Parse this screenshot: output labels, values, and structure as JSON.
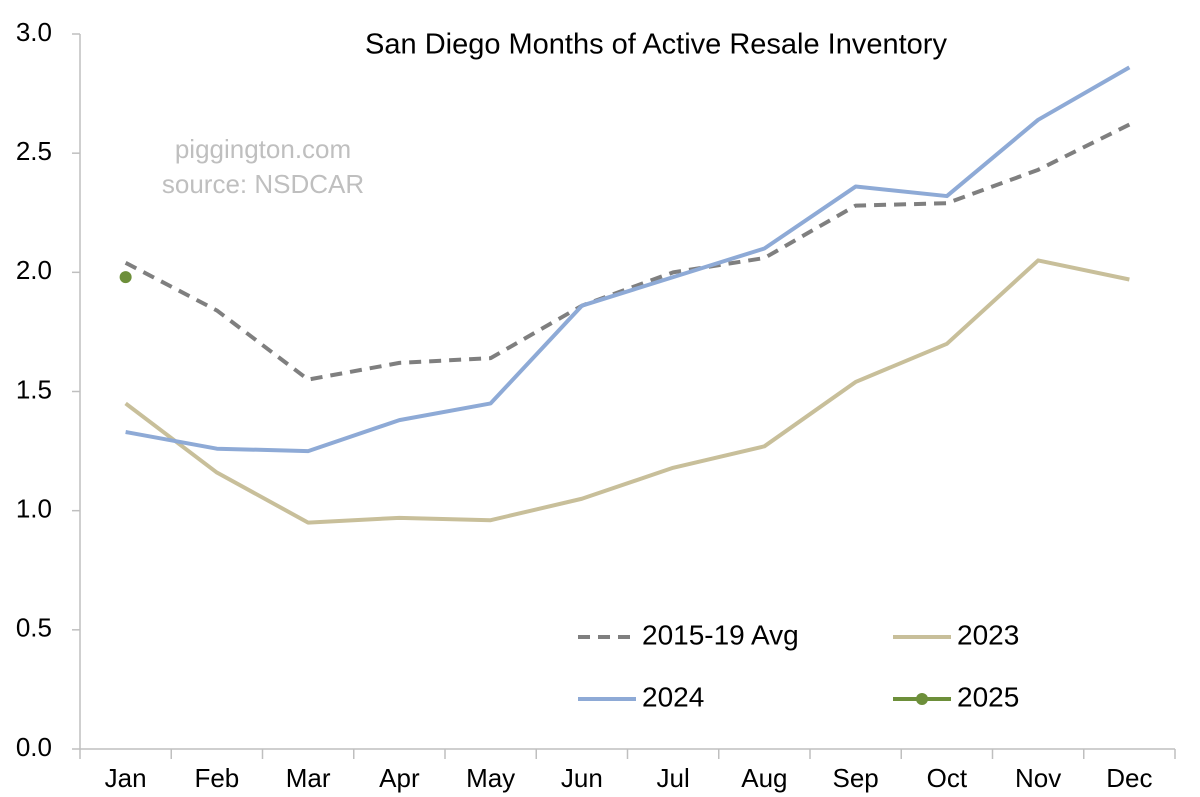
{
  "chart_data": {
    "type": "line",
    "title": "San Diego Months of Active Resale Inventory",
    "annotations": [
      "piggington.com",
      "source: NSDCAR"
    ],
    "categories": [
      "Jan",
      "Feb",
      "Mar",
      "Apr",
      "May",
      "Jun",
      "Jul",
      "Aug",
      "Sep",
      "Oct",
      "Nov",
      "Dec"
    ],
    "series": [
      {
        "name": "2015-19 Avg",
        "color": "#7f7f7f",
        "dashed": true,
        "values": [
          2.04,
          1.84,
          1.55,
          1.62,
          1.64,
          1.86,
          2.0,
          2.06,
          2.28,
          2.29,
          2.43,
          2.62
        ]
      },
      {
        "name": "2023",
        "color": "#c8bf9a",
        "values": [
          1.45,
          1.16,
          0.95,
          0.97,
          0.96,
          1.05,
          1.18,
          1.27,
          1.54,
          1.7,
          2.05,
          1.97
        ]
      },
      {
        "name": "2024",
        "color": "#8eaad6",
        "values": [
          1.33,
          1.26,
          1.25,
          1.38,
          1.45,
          1.86,
          1.98,
          2.1,
          2.36,
          2.32,
          2.64,
          2.86
        ]
      },
      {
        "name": "2025",
        "color": "#6d8f3a",
        "markers": true,
        "values": [
          1.98,
          null,
          null,
          null,
          null,
          null,
          null,
          null,
          null,
          null,
          null,
          null
        ]
      }
    ],
    "ylim": [
      0,
      3
    ],
    "yticks": [
      {
        "value": 0,
        "label": "0.0"
      },
      0.5,
      {
        "value": 1,
        "label": "1.0"
      },
      1.5,
      {
        "value": 2,
        "label": "2.0"
      },
      2.5,
      {
        "value": 3,
        "label": "3.0"
      }
    ],
    "grid": false,
    "legend": "lower-right"
  }
}
